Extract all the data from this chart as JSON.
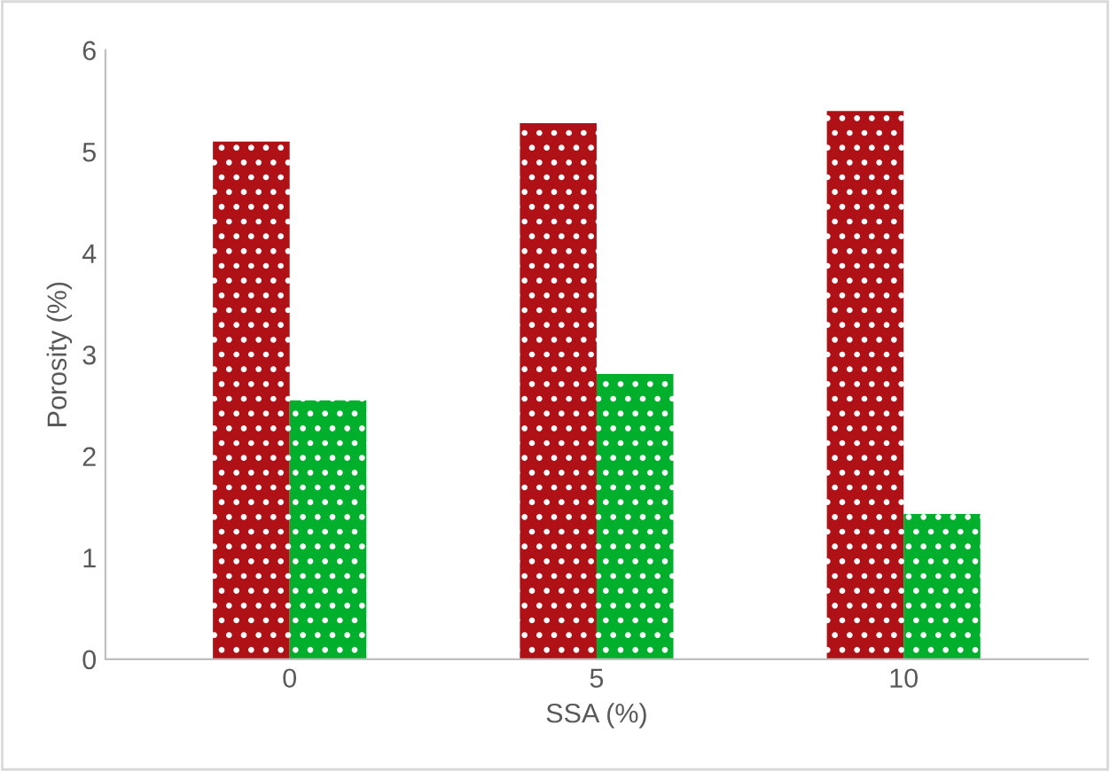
{
  "chart_data": {
    "type": "bar",
    "xlabel": "SSA (%)",
    "ylabel": "Porosity (%)",
    "categories": [
      "0",
      "5",
      "10"
    ],
    "series": [
      {
        "color": "#b01116",
        "values": [
          5.1,
          5.28,
          5.4
        ]
      },
      {
        "color": "#00b02c",
        "values": [
          2.55,
          2.81,
          1.43
        ]
      }
    ],
    "ylim": [
      0,
      6
    ],
    "yticks": [
      0,
      1,
      2,
      3,
      4,
      5,
      6
    ],
    "grid": false,
    "legend": false
  }
}
